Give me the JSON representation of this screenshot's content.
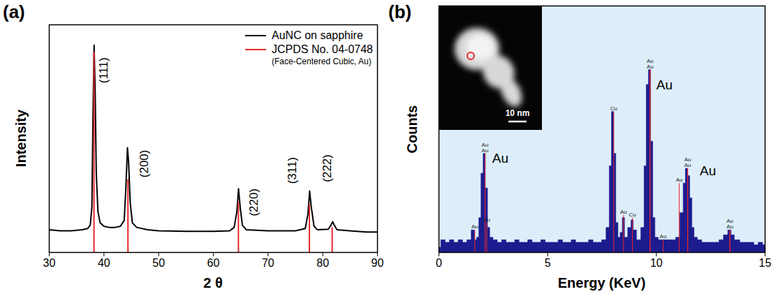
{
  "chart_data": [
    {
      "panel": "(a)",
      "type": "line",
      "xlabel": "2 θ",
      "ylabel": "Intensity",
      "xlim": [
        30,
        90
      ],
      "xticks": [
        30,
        40,
        50,
        60,
        70,
        80,
        90
      ],
      "ylim": [
        0,
        100
      ],
      "yticks": [],
      "tick_labels": "x",
      "grid": false,
      "legend": "top-right",
      "series": [
        {
          "name": "AuNC on sapphire",
          "type": "line",
          "color": "#000000",
          "x": [
            30,
            32,
            34,
            36,
            37,
            37.5,
            37.8,
            38.0,
            38.2,
            38.4,
            38.6,
            38.9,
            39.3,
            40,
            41,
            42,
            43,
            43.7,
            44.0,
            44.3,
            44.5,
            44.8,
            45.2,
            46,
            48,
            50,
            55,
            60,
            63,
            63.8,
            64.3,
            64.6,
            64.9,
            65.3,
            66,
            70,
            75,
            76.8,
            77.3,
            77.6,
            77.9,
            78.4,
            79,
            81,
            81.5,
            81.8,
            82.1,
            82.6,
            85,
            88,
            90
          ],
          "values": [
            10,
            9.5,
            9.5,
            10,
            10.5,
            12,
            20,
            60,
            91,
            70,
            35,
            18,
            13,
            11.5,
            11,
            11,
            11.5,
            14,
            28,
            46,
            40,
            22,
            13,
            11,
            10,
            9.5,
            9.3,
            9.3,
            9.5,
            11,
            18,
            28,
            20,
            12,
            10,
            9.5,
            9.5,
            10.5,
            17,
            27,
            20,
            11.5,
            10,
            10.2,
            12,
            13.5,
            12,
            10,
            9.5,
            9,
            9
          ]
        },
        {
          "name": "JCPDS No. 04-0748",
          "description": "(Face-Centered Cubic, Au)",
          "type": "stem",
          "color": "#e8262a",
          "x": [
            38.18,
            44.39,
            64.58,
            77.55,
            81.72
          ],
          "values": [
            88,
            32,
            22,
            21,
            11
          ]
        }
      ],
      "annotations": [
        {
          "text": "(111)",
          "x": 39.9,
          "y": 80
        },
        {
          "text": "(200)",
          "x": 47.4,
          "y": 39
        },
        {
          "text": "(220)",
          "x": 67.4,
          "y": 22
        },
        {
          "text": "(311)",
          "x": 74.4,
          "y": 36
        },
        {
          "text": "(222)",
          "x": 80.8,
          "y": 37
        }
      ]
    },
    {
      "panel": "(b)",
      "type": "area",
      "xlabel": "Energy (KeV)",
      "ylabel": "Counts",
      "xlim": [
        0,
        15
      ],
      "xticks": [
        0,
        5,
        10,
        15
      ],
      "ylim": [
        0,
        100
      ],
      "yticks": [],
      "tick_labels": "x",
      "grid": false,
      "color": "#1c1c8e",
      "x": [
        0.0,
        0.2,
        0.4,
        0.6,
        0.8,
        1.0,
        1.2,
        1.4,
        1.6,
        1.7,
        1.8,
        1.9,
        2.0,
        2.1,
        2.2,
        2.3,
        2.4,
        2.6,
        2.8,
        3.0,
        3.2,
        3.4,
        3.6,
        3.8,
        4.0,
        4.2,
        4.4,
        4.6,
        4.8,
        5.0,
        5.2,
        5.4,
        5.6,
        5.8,
        6.0,
        6.2,
        6.4,
        6.6,
        6.8,
        7.0,
        7.2,
        7.4,
        7.6,
        7.8,
        7.9,
        8.0,
        8.1,
        8.2,
        8.3,
        8.4,
        8.5,
        8.6,
        8.8,
        8.9,
        9.0,
        9.2,
        9.4,
        9.5,
        9.6,
        9.7,
        9.8,
        9.9,
        10.0,
        10.2,
        10.4,
        10.6,
        10.8,
        11.0,
        11.2,
        11.3,
        11.4,
        11.5,
        11.6,
        11.7,
        11.8,
        12.0,
        12.2,
        12.4,
        12.6,
        12.8,
        13.0,
        13.2,
        13.4,
        13.5,
        13.7,
        14.0,
        14.2,
        14.4,
        14.6,
        14.8,
        15.0
      ],
      "values": [
        2,
        5,
        4,
        5,
        4,
        5,
        4,
        5,
        9,
        5,
        6,
        14,
        32,
        40,
        26,
        10,
        6,
        5,
        4,
        5,
        4,
        4,
        5,
        4,
        4,
        5,
        4,
        4,
        5,
        4,
        4,
        4,
        5,
        4,
        4,
        5,
        4,
        4,
        4,
        5,
        4,
        4,
        5,
        10,
        35,
        57,
        40,
        12,
        6,
        8,
        14,
        6,
        10,
        13,
        9,
        5,
        10,
        35,
        68,
        74,
        45,
        14,
        6,
        5,
        5,
        5,
        5,
        6,
        16,
        28,
        34,
        31,
        22,
        10,
        6,
        5,
        4,
        4,
        4,
        4,
        5,
        7,
        9,
        7,
        5,
        4,
        4,
        4,
        3,
        4,
        3
      ],
      "peak_markers": {
        "color": "#e8262a",
        "items": [
          {
            "energy": 1.65,
            "counts": 9,
            "label": "Au"
          },
          {
            "energy": 2.12,
            "counts": 40,
            "label": "Au"
          },
          {
            "energy": 2.12,
            "counts": 40,
            "label": "Au"
          },
          {
            "energy": 2.2,
            "counts": 12,
            "label": "Au"
          },
          {
            "energy": 8.04,
            "counts": 57,
            "label": "Cu"
          },
          {
            "energy": 8.49,
            "counts": 15,
            "label": "Au"
          },
          {
            "energy": 8.9,
            "counts": 14,
            "label": "Cu"
          },
          {
            "energy": 9.71,
            "counts": 74,
            "label": "Au"
          },
          {
            "energy": 9.71,
            "counts": 74,
            "label": "Au"
          },
          {
            "energy": 10.31,
            "counts": 5,
            "label": "Au"
          },
          {
            "energy": 11.05,
            "counts": 28,
            "label": "Au"
          },
          {
            "energy": 11.44,
            "counts": 34,
            "label": "Au"
          },
          {
            "energy": 11.44,
            "counts": 34,
            "label": "Au"
          },
          {
            "energy": 13.38,
            "counts": 9,
            "label": "Au"
          },
          {
            "energy": 13.38,
            "counts": 9,
            "label": "Au"
          }
        ]
      },
      "annotations": [
        {
          "text": "Au",
          "x": 2.45,
          "y": 38
        },
        {
          "text": "Au",
          "x": 10.0,
          "y": 68
        },
        {
          "text": "Au",
          "x": 12.0,
          "y": 33
        }
      ],
      "inset": {
        "scale_bar_label": "10 nm"
      }
    }
  ]
}
